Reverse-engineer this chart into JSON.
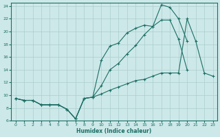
{
  "xlabel": "Humidex (Indice chaleur)",
  "bg_color": "#cde8e8",
  "line_color": "#1a6e65",
  "grid_color": "#aacece",
  "xlim_min": -0.5,
  "xlim_max": 23.5,
  "ylim_min": 6,
  "ylim_max": 24.5,
  "xticks": [
    0,
    1,
    2,
    3,
    4,
    5,
    6,
    7,
    8,
    9,
    10,
    11,
    12,
    13,
    14,
    15,
    16,
    17,
    18,
    19,
    20,
    21,
    22,
    23
  ],
  "yticks": [
    6,
    8,
    10,
    12,
    14,
    16,
    18,
    20,
    22,
    24
  ],
  "line1_x": [
    0,
    1,
    2,
    3,
    4,
    5,
    6,
    7,
    8,
    9,
    10,
    11,
    12,
    13,
    14,
    15,
    16,
    17,
    18,
    19,
    20,
    21,
    22,
    23
  ],
  "line1_y": [
    9.5,
    9.2,
    9.2,
    8.5,
    8.5,
    8.5,
    7.8,
    6.3,
    9.5,
    9.7,
    15.5,
    17.7,
    18.2,
    19.8,
    20.5,
    21.0,
    20.8,
    21.8,
    21.8,
    18.8,
    14.0,
    null,
    null,
    null
  ],
  "line2_x": [
    0,
    1,
    2,
    3,
    4,
    5,
    6,
    7,
    8,
    9,
    10,
    11,
    12,
    13,
    14,
    15,
    16,
    17,
    18,
    19,
    20,
    21,
    22,
    23
  ],
  "line2_y": [
    9.5,
    9.2,
    9.2,
    8.5,
    8.5,
    8.5,
    7.8,
    6.3,
    9.5,
    9.7,
    11.5,
    14.0,
    15.0,
    16.5,
    17.8,
    19.5,
    20.8,
    24.2,
    23.8,
    22.0,
    18.5,
    null,
    null,
    null
  ],
  "line3_x": [
    0,
    1,
    2,
    3,
    4,
    5,
    6,
    7,
    8,
    9,
    10,
    11,
    12,
    13,
    14,
    15,
    16,
    17,
    18,
    19,
    20,
    21,
    22,
    23
  ],
  "line3_y": [
    9.5,
    9.2,
    9.2,
    8.5,
    8.5,
    8.5,
    7.8,
    6.3,
    9.5,
    9.7,
    10.2,
    10.8,
    11.3,
    11.8,
    12.3,
    12.5,
    13.0,
    13.5,
    13.5,
    13.5,
    22.0,
    18.5,
    13.5,
    13.0
  ]
}
